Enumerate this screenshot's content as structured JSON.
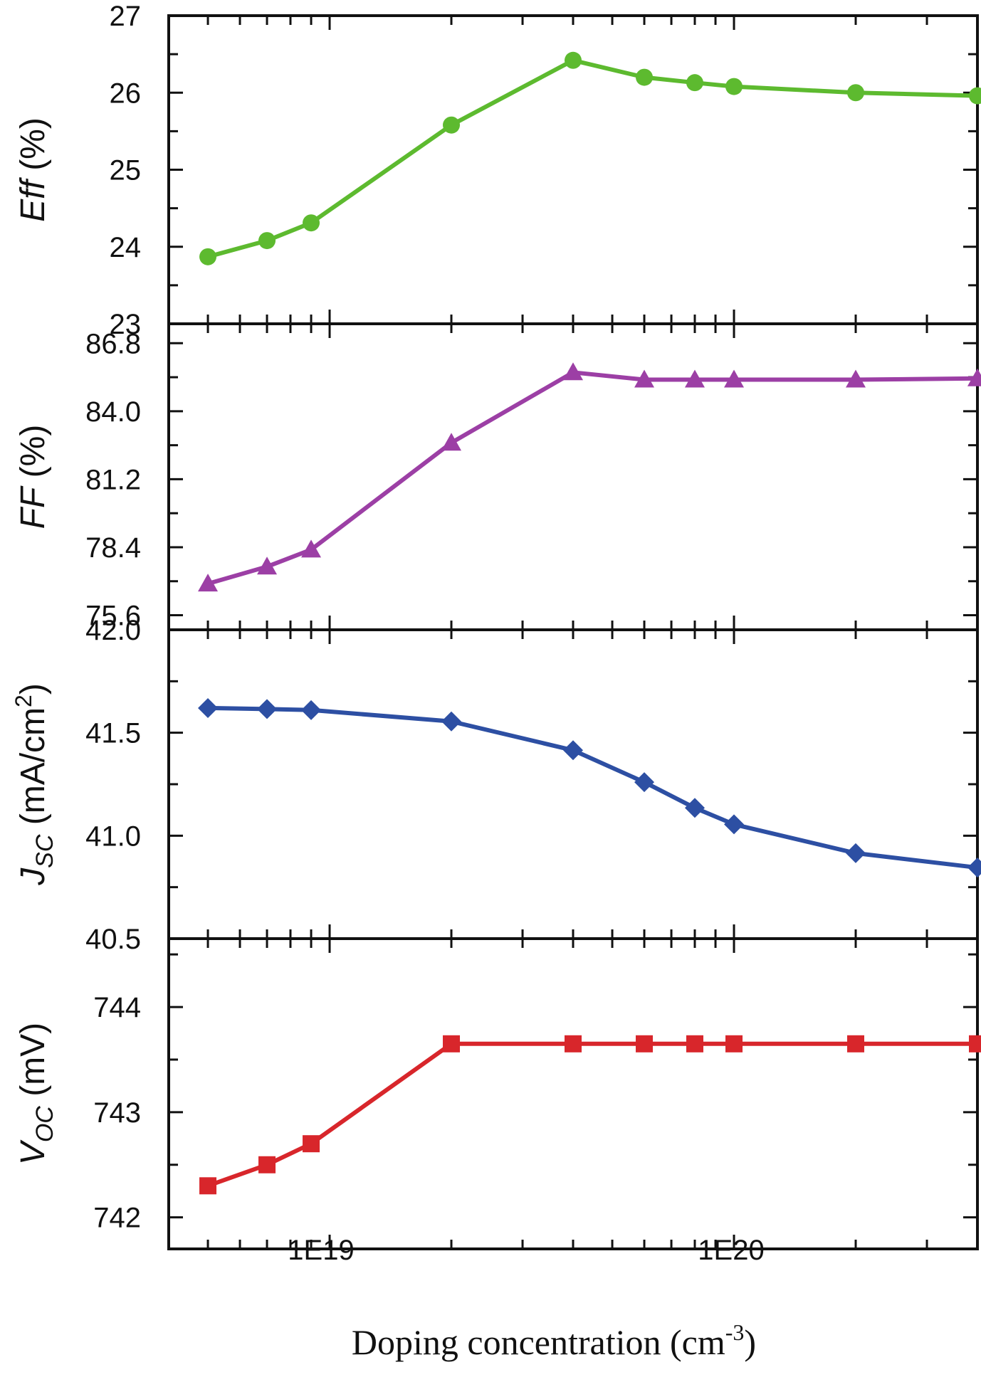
{
  "chart_data": {
    "type": "line",
    "x_scale": "log",
    "x": [
      5e+18,
      7e+18,
      9e+18,
      2e+19,
      4e+19,
      6e+19,
      8e+19,
      1e+20,
      2e+20,
      4e+20
    ],
    "x_tick_labels": [
      {
        "value": 1e+19,
        "label": "1E19"
      },
      {
        "value": 1e+20,
        "label": "1E20"
      }
    ],
    "xlim": [
      4e+18,
      4e+20
    ],
    "xlabel": {
      "text": "Doping concentration (cm",
      "sup": "-3",
      "suffix": ")"
    },
    "panels": [
      {
        "id": "eff",
        "ylabel": {
          "main": "Eff",
          "suffix": " (%)"
        },
        "ylim": [
          23,
          27
        ],
        "yticks": [
          23,
          24,
          25,
          26,
          27
        ],
        "ytick_labels": [
          "23",
          "24",
          "25",
          "26",
          "27"
        ],
        "color": "#5dba2f",
        "marker": "circle",
        "values": [
          23.87,
          24.08,
          24.31,
          25.58,
          26.42,
          26.2,
          26.13,
          26.08,
          26.0,
          25.96
        ]
      },
      {
        "id": "ff",
        "ylabel": {
          "main": "FF",
          "suffix": " (%)"
        },
        "ylim": [
          75.0,
          87.6
        ],
        "yticks": [
          75.6,
          78.4,
          81.2,
          84.0,
          86.8
        ],
        "ytick_labels": [
          "75.6",
          "78.4",
          "81.2",
          "84.0",
          "86.8"
        ],
        "color": "#9c3fa5",
        "marker": "triangle",
        "values": [
          76.9,
          77.6,
          78.3,
          82.7,
          85.6,
          85.3,
          85.3,
          85.3,
          85.3,
          85.35
        ]
      },
      {
        "id": "jsc",
        "ylabel": {
          "main": "J",
          "sub": "SC",
          "suffix": " (mA/cm",
          "sup": "2",
          "end": ")"
        },
        "ylim": [
          40.5,
          42.0
        ],
        "yticks": [
          40.5,
          41.0,
          41.5,
          42.0
        ],
        "ytick_labels": [
          "40.5",
          "41.0",
          "41.5",
          "42.0"
        ],
        "color": "#2d4fa3",
        "marker": "diamond",
        "values": [
          41.62,
          41.615,
          41.61,
          41.555,
          41.415,
          41.26,
          41.135,
          41.055,
          40.915,
          40.845
        ]
      },
      {
        "id": "voc",
        "ylabel": {
          "main": "V",
          "sub": "OC",
          "suffix": " (mV)"
        },
        "ylim": [
          741.7,
          744.65
        ],
        "yticks": [
          742,
          743,
          744
        ],
        "ytick_labels": [
          "742",
          "743",
          "744"
        ],
        "color": "#d8262b",
        "marker": "square",
        "values": [
          742.3,
          742.5,
          742.7,
          743.65,
          743.65,
          743.65,
          743.65,
          743.65,
          743.65,
          743.65
        ]
      }
    ]
  }
}
